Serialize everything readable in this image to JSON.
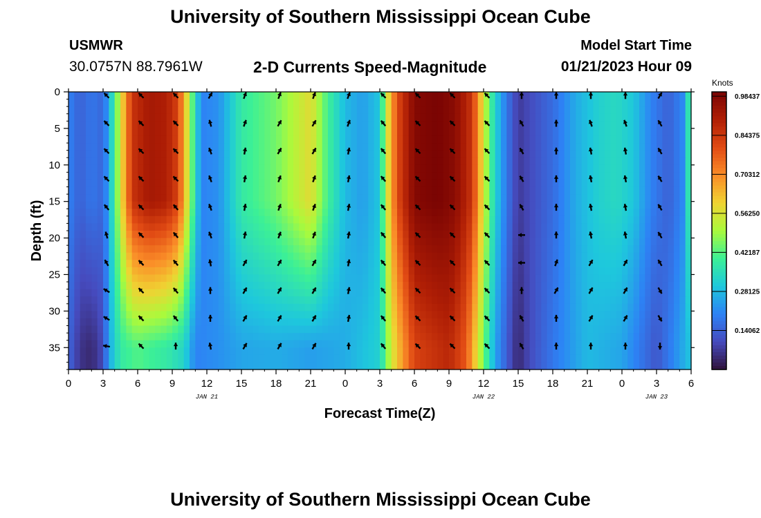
{
  "header": {
    "title": "University of Southern Mississippi Ocean Cube",
    "station_name": "USMWR",
    "station_coords": "30.0757N  88.7961W",
    "subtitle": "2-D Currents Speed-Magnitude",
    "model_start_label": "Model Start Time",
    "model_start_value": "01/21/2023 Hour 09"
  },
  "footer": {
    "next_title": "University of Southern Mississippi Ocean Cube"
  },
  "chart_data": {
    "type": "heatmap",
    "title": "2-D Currents Speed-Magnitude",
    "xlabel": "Forecast Time(Z)",
    "ylabel": "Depth (ft)",
    "x_range_hours": [
      0,
      54
    ],
    "ylim": [
      0,
      38
    ],
    "y_inverted": true,
    "x_ticks": [
      {
        "h": 0,
        "label": "0"
      },
      {
        "h": 3,
        "label": "3"
      },
      {
        "h": 6,
        "label": "6"
      },
      {
        "h": 9,
        "label": "9"
      },
      {
        "h": 12,
        "label": "12"
      },
      {
        "h": 15,
        "label": "15"
      },
      {
        "h": 18,
        "label": "18"
      },
      {
        "h": 21,
        "label": "21"
      },
      {
        "h": 24,
        "label": "0"
      },
      {
        "h": 27,
        "label": "3"
      },
      {
        "h": 30,
        "label": "6"
      },
      {
        "h": 33,
        "label": "9"
      },
      {
        "h": 36,
        "label": "12"
      },
      {
        "h": 39,
        "label": "15"
      },
      {
        "h": 42,
        "label": "18"
      },
      {
        "h": 45,
        "label": "21"
      },
      {
        "h": 48,
        "label": "0"
      },
      {
        "h": 51,
        "label": "3"
      },
      {
        "h": 54,
        "label": "6"
      }
    ],
    "date_labels": [
      {
        "h": 12,
        "label": "JAN 21"
      },
      {
        "h": 36,
        "label": "JAN 22"
      },
      {
        "h": 51,
        "label": "JAN 23"
      }
    ],
    "y_ticks": [
      0,
      5,
      10,
      15,
      20,
      25,
      30,
      35
    ],
    "colorbar": {
      "unit": "Knots",
      "min": 0.0,
      "max": 1.0,
      "ticks": [
        "0.98437",
        "0.84375",
        "0.70312",
        "0.56250",
        "0.42187",
        "0.28125",
        "0.14062"
      ],
      "tick_values": [
        0.98437,
        0.84375,
        0.70312,
        0.5625,
        0.42187,
        0.28125,
        0.14062
      ]
    },
    "speed_profile": {
      "description": "approximate column speed (knots) vs forecast hour at depth 0-15 ft",
      "hours": [
        0,
        1,
        2,
        3,
        3.5,
        4.5,
        5.5,
        7,
        8.5,
        9.5,
        10.5,
        11.5,
        13,
        15,
        18,
        21,
        22.5,
        24,
        25.5,
        27,
        27.5,
        28.5,
        30,
        32,
        33.5,
        35,
        36,
        37,
        38,
        39,
        40,
        42,
        44,
        46,
        47.5,
        49,
        50.5,
        52,
        53.5,
        54
      ],
      "speed": [
        0.2,
        0.14,
        0.18,
        0.15,
        0.26,
        0.55,
        0.85,
        0.92,
        0.9,
        0.82,
        0.5,
        0.2,
        0.22,
        0.38,
        0.45,
        0.58,
        0.4,
        0.28,
        0.24,
        0.3,
        0.52,
        0.8,
        0.98,
        1.0,
        0.97,
        0.85,
        0.55,
        0.32,
        0.18,
        0.07,
        0.1,
        0.16,
        0.26,
        0.32,
        0.34,
        0.3,
        0.2,
        0.14,
        0.22,
        0.5
      ]
    },
    "bottom_profile": {
      "description": "approximate column speed (knots) vs forecast hour near 30-38 ft",
      "hours": [
        0,
        1,
        2,
        3,
        3.5,
        4.5,
        6,
        7,
        8.5,
        10,
        11,
        13,
        15,
        18,
        21,
        24,
        27,
        28,
        30,
        33,
        34.5,
        36,
        37,
        38.5,
        39,
        40,
        42,
        45,
        48,
        51,
        54
      ],
      "speed": [
        0.15,
        0.06,
        0.04,
        0.1,
        0.25,
        0.38,
        0.42,
        0.4,
        0.38,
        0.33,
        0.2,
        0.22,
        0.25,
        0.26,
        0.24,
        0.26,
        0.32,
        0.55,
        0.82,
        0.88,
        0.78,
        0.45,
        0.25,
        0.08,
        0.04,
        0.1,
        0.18,
        0.28,
        0.25,
        0.12,
        0.3
      ]
    },
    "vector_columns_hours": [
      3.3,
      6.3,
      9.3,
      12.3,
      15.3,
      18.3,
      21.3,
      24.3,
      27.3,
      30.3,
      33.3,
      36.3,
      39.3,
      42.3,
      45.3,
      48.3,
      51.3
    ],
    "vector_rows_depth": [
      0.5,
      4.3,
      8.1,
      11.9,
      15.8,
      19.6,
      23.4,
      27.2,
      31.0,
      34.8
    ],
    "vector_direction_deg": [
      [
        315,
        315,
        315,
        30,
        20,
        20,
        20,
        20,
        315,
        315,
        315,
        315,
        0,
        0,
        0,
        0,
        30
      ],
      [
        315,
        315,
        315,
        345,
        20,
        30,
        30,
        20,
        320,
        315,
        315,
        315,
        330,
        0,
        340,
        340,
        330
      ],
      [
        315,
        315,
        315,
        340,
        10,
        30,
        30,
        10,
        320,
        315,
        315,
        315,
        330,
        0,
        350,
        350,
        330
      ],
      [
        315,
        315,
        315,
        340,
        10,
        20,
        20,
        10,
        320,
        315,
        315,
        315,
        330,
        0,
        350,
        350,
        330
      ],
      [
        320,
        315,
        320,
        340,
        10,
        20,
        20,
        10,
        320,
        315,
        315,
        315,
        330,
        0,
        350,
        350,
        330
      ],
      [
        345,
        315,
        320,
        340,
        10,
        20,
        20,
        10,
        320,
        315,
        315,
        315,
        270,
        0,
        350,
        350,
        330
      ],
      [
        330,
        315,
        320,
        350,
        30,
        30,
        30,
        10,
        320,
        315,
        315,
        315,
        270,
        20,
        30,
        30,
        330
      ],
      [
        300,
        315,
        320,
        0,
        30,
        30,
        30,
        10,
        320,
        315,
        315,
        315,
        0,
        30,
        30,
        30,
        150
      ],
      [
        300,
        315,
        320,
        0,
        30,
        30,
        30,
        10,
        320,
        315,
        315,
        315,
        330,
        0,
        30,
        30,
        150
      ],
      [
        280,
        315,
        0,
        350,
        30,
        30,
        30,
        0,
        320,
        315,
        315,
        315,
        330,
        0,
        0,
        0,
        180
      ]
    ]
  }
}
